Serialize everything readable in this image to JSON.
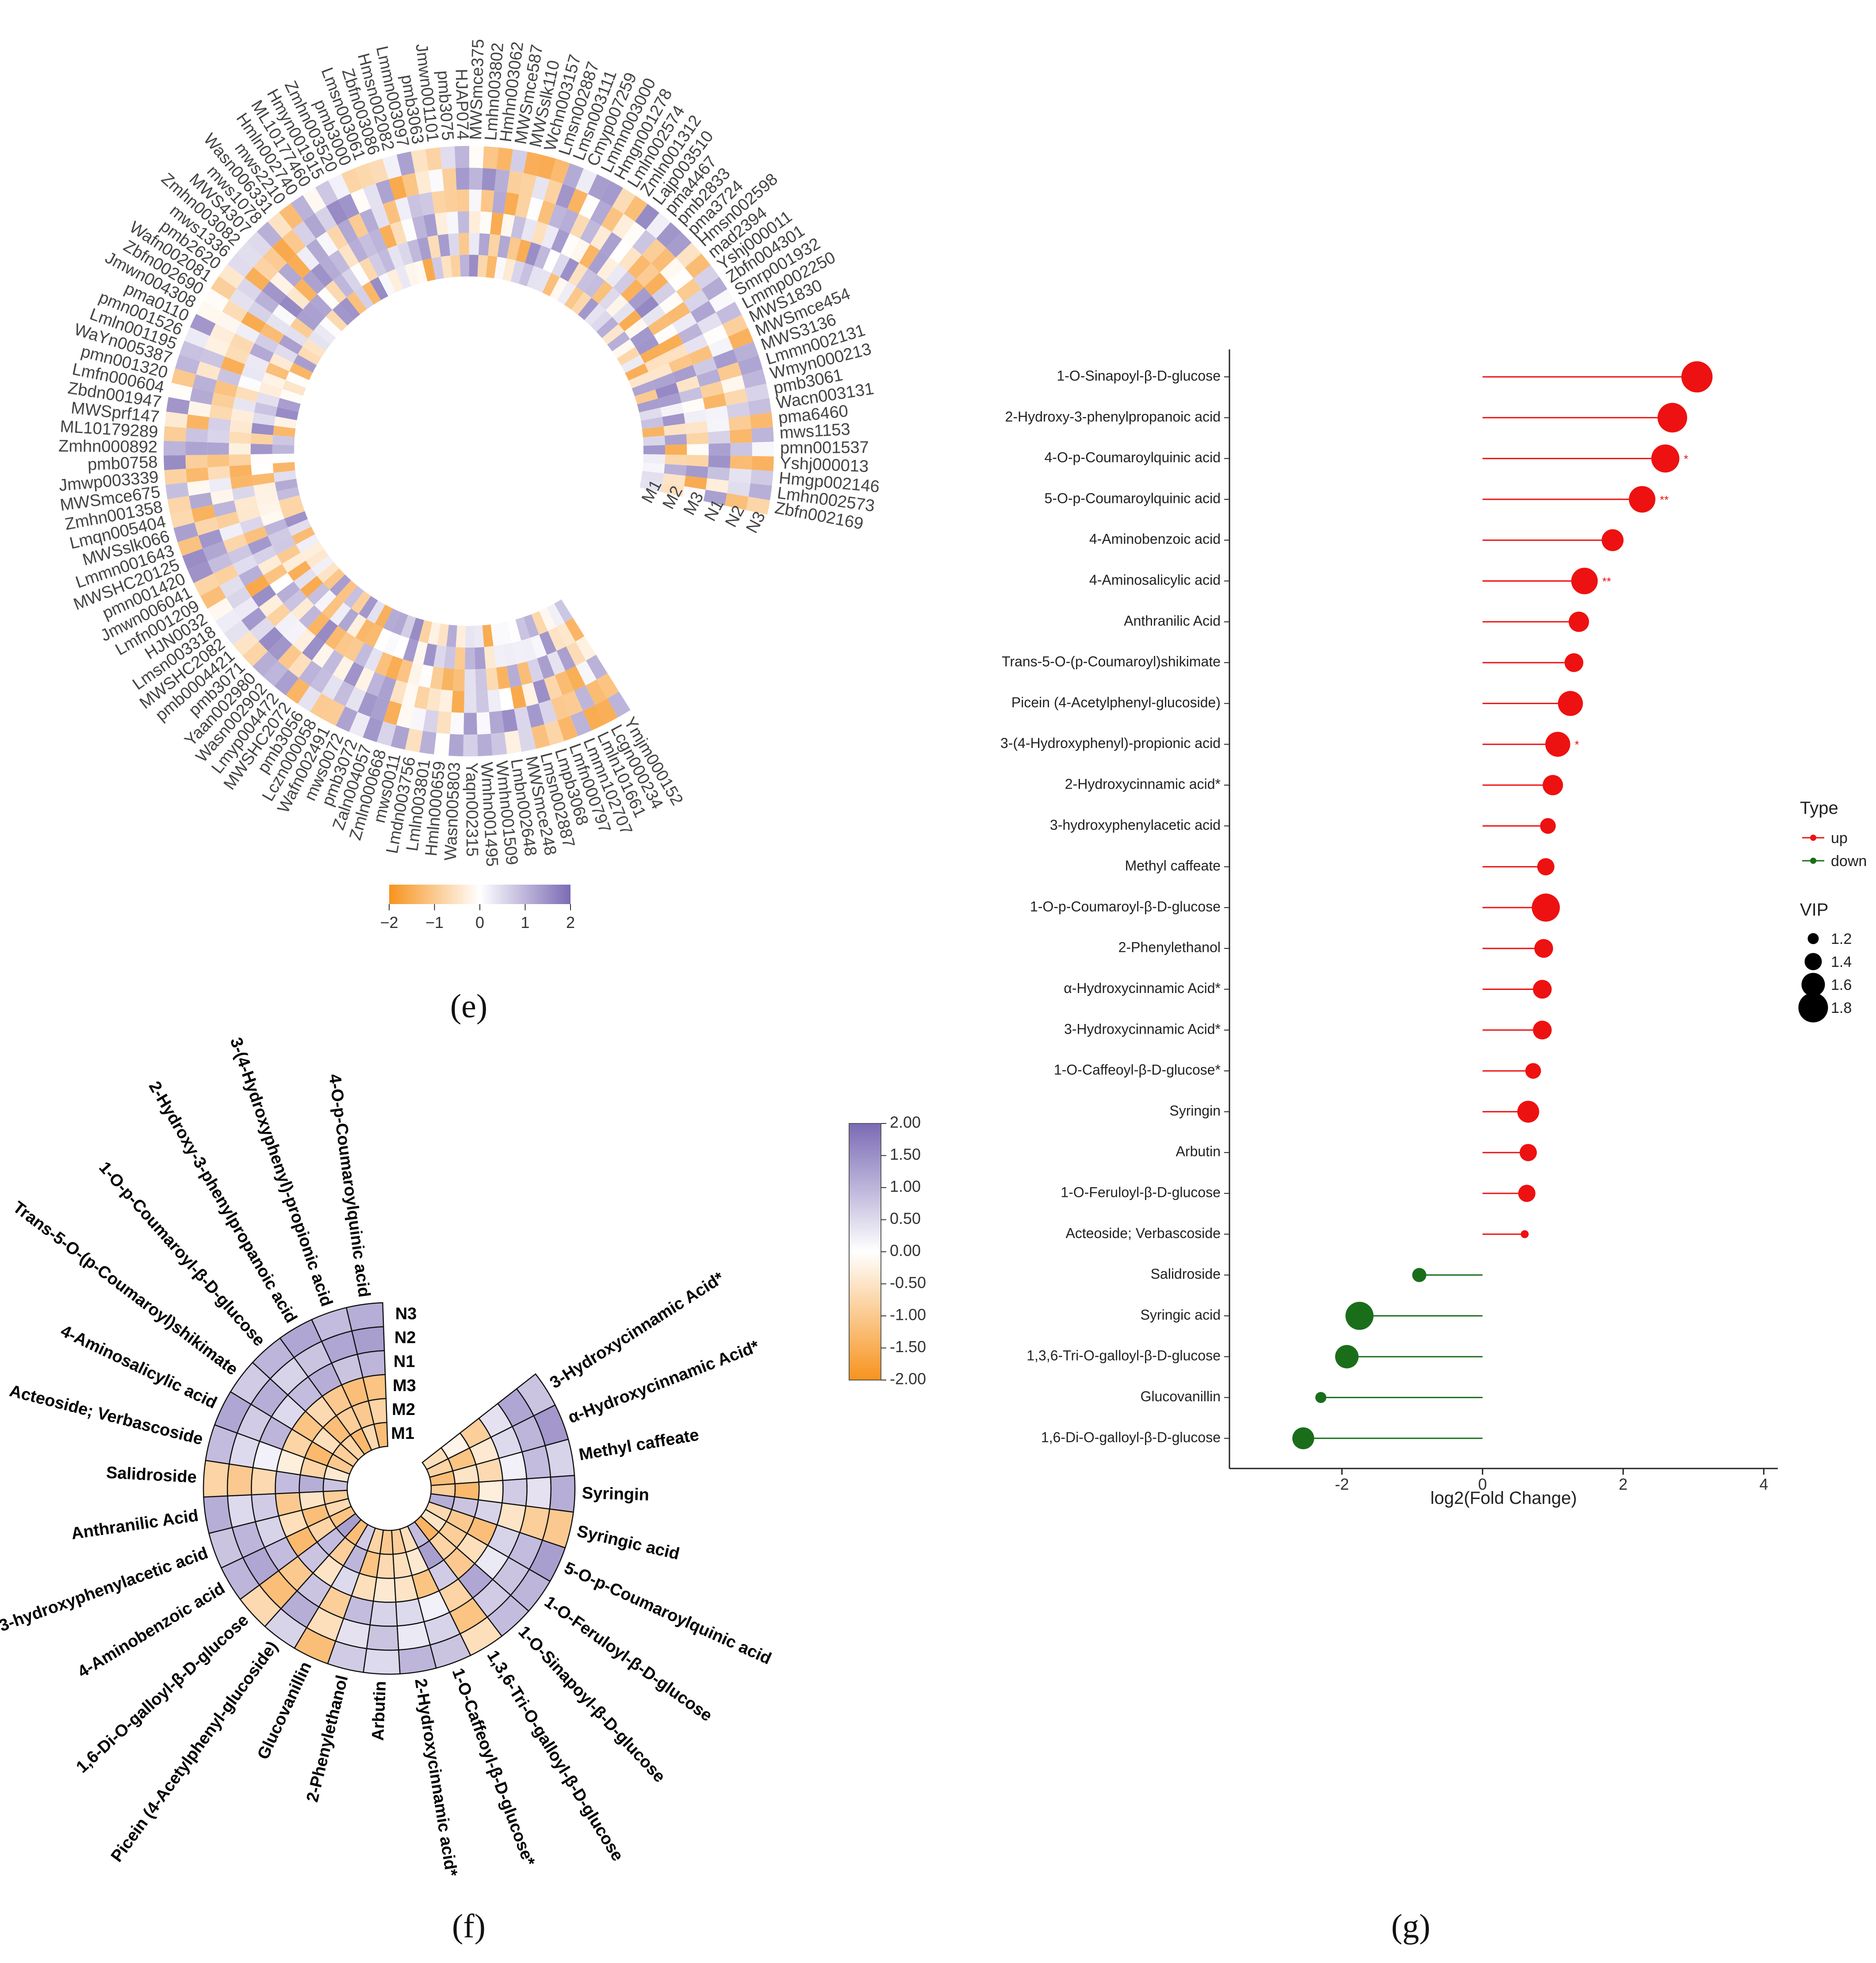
{
  "panel_labels": {
    "e": "(e)",
    "f": "(f)",
    "g": "(g)"
  },
  "colors": {
    "low": "#f7931e",
    "mid": "#ffffff",
    "high": "#7b6bb5",
    "up": "#ee1111",
    "down": "#1a6e1a"
  },
  "chart_data": [
    {
      "id": "e",
      "type": "heatmap",
      "title": "",
      "samples": [
        "M1",
        "M2",
        "M3",
        "N1",
        "N2",
        "N3"
      ],
      "colorbar_ticks": [
        "−2",
        "−1",
        "0",
        "1",
        "2"
      ],
      "colorbar_range": [
        -2,
        2
      ],
      "features": [
        "Ymjm000152",
        "Lcgn000234",
        "Lmln101661",
        "Lmmn102707",
        "Lmfn000797",
        "Lmpb3068",
        "Lmsn002887",
        "MWSmce248",
        "Lmbn002648",
        "Wmhn001509",
        "Wmhn001495",
        "Yaqn002315",
        "Wasn005803",
        "Hmln000659",
        "Lmln003801",
        "Lmdn003756",
        "mws0011",
        "Zmln000668",
        "Zaln004057",
        "pmb3072",
        "mws0072",
        "Wafn002491",
        "Lczn000058",
        "pmb3056",
        "MWSHC2072",
        "Lmyp004472",
        "Wasn002902",
        "Yaan002980",
        "pmb3071",
        "pmb0004421",
        "MWSHC2082",
        "Lmsn003318",
        "HJN0032",
        "Lmfn001209",
        "Jmwn006041",
        "pmn001420",
        "MWSHC20125",
        "Lmmn001643",
        "MWSslk066",
        "Lmqn005404",
        "Zmhn001358",
        "MWSmce675",
        "Jmwp003339",
        "pmb0758",
        "Zmhn000892",
        "ML10179289",
        "MWSprf147",
        "Zbdn001947",
        "Lmfn000604",
        "pmn001320",
        "WaYn005387",
        "Lmln001195",
        "pmn001526",
        "pma0110",
        "Jmwn004308",
        "Zbfn002690",
        "Wafn002081",
        "pmb2620",
        "mws1336",
        "Zmhn003082",
        "MWS4307",
        "mws1078",
        "Wasn006331",
        "mws2210",
        "Hmln002740",
        "ML10177460",
        "Hmyn001915",
        "Zmhn003520",
        "pmb3000",
        "Lmsn003061",
        "Zbfn003086",
        "Hmsn002082",
        "Lmmn003097",
        "pmb3063",
        "Jmwn001101",
        "pmb3075",
        "HJAP074",
        "MWSmce375",
        "Lmhn003802",
        "Hmhn003062",
        "MWSmce587",
        "MWSslk110",
        "Wchn003157",
        "Lmsn002887",
        "Lmsn003111",
        "Cmyp007259",
        "Lmmn003000",
        "Hmgn001278",
        "Lmln002574",
        "Zmln001312",
        "Lajp003510",
        "pma4467",
        "pmb2833",
        "pma3724",
        "Hmsn002598",
        "mad2394",
        "Yshj000011",
        "Zbfn004301",
        "Smrp001932",
        "Lmmp002250",
        "MWS1830",
        "MWSmce454",
        "MWS3136",
        "Lmmn002131",
        "Wmyn000213",
        "pmb3061",
        "Wacn003131",
        "pma6460",
        "mws1153",
        "pmn001537",
        "Yshj000013",
        "Hmgp002146",
        "Lmhn002573",
        "Zbfn002169"
      ]
    },
    {
      "id": "f",
      "type": "heatmap",
      "title": "",
      "samples": [
        "M1",
        "M2",
        "M3",
        "N1",
        "N2",
        "N3"
      ],
      "colorbar_ticks": [
        "2.00",
        "1.50",
        "1.00",
        "0.50",
        "0.00",
        "-0.50",
        "-1.00",
        "-1.50",
        "-2.00"
      ],
      "colorbar_range": [
        -2,
        2
      ],
      "features": [
        "3-Hydroxycinnamic Acid*",
        "α-Hydroxycinnamic Acid*",
        "Methyl caffeate",
        "Syringin",
        "Syringic acid",
        "5-O-p-Coumaroylquinic acid",
        "1-O-Feruloyl-β-D-glucose",
        "1-O-Sinapoyl-β-D-glucose",
        "1,3,6-Tri-O-galloyl-β-D-glucose",
        "1-O-Caffeoyl-β-D-glucose*",
        "2-Hydroxycinnamic acid*",
        "Arbutin",
        "2-Phenylethanol",
        "Glucovanillin",
        "Picein (4-Acetylphenyl-glucoside)",
        "1,6-Di-O-galloyl-β-D-glucose",
        "4-Aminobenzoic acid",
        "3-hydroxyphenylacetic acid",
        "Anthranilic Acid",
        "Salidroside",
        "Acteoside; Verbascoside",
        "4-Aminosalicylic acid",
        "Trans-5-O-(p-Coumaroyl)shikimate",
        "1-O-p-Coumaroyl-β-D-glucose",
        "2-Hydroxy-3-phenylpropanoic acid",
        "3-(4-Hydroxyphenyl)-propionic acid",
        "4-O-p-Coumaroylquinic acid"
      ],
      "values": [
        [
          -0.6,
          -0.2,
          -0.9,
          0.4,
          1.2,
          0.8
        ],
        [
          -0.8,
          -1.1,
          -0.4,
          0.5,
          1.0,
          1.4
        ],
        [
          -1.2,
          -0.5,
          -0.7,
          0.2,
          0.9,
          0.6
        ],
        [
          -0.9,
          -1.3,
          -0.3,
          0.7,
          0.4,
          1.1
        ],
        [
          1.1,
          0.8,
          0.6,
          -0.5,
          -0.9,
          -1.0
        ],
        [
          -0.7,
          -1.0,
          -1.2,
          0.6,
          0.9,
          1.3
        ],
        [
          -0.5,
          -0.9,
          -0.6,
          0.3,
          0.8,
          1.0
        ],
        [
          -1.4,
          -0.8,
          -1.0,
          1.2,
          0.7,
          0.9
        ],
        [
          0.9,
          1.3,
          0.7,
          -0.8,
          -1.1,
          -0.6
        ],
        [
          -0.6,
          -0.4,
          -1.1,
          0.2,
          0.6,
          0.8
        ],
        [
          -0.9,
          -0.6,
          -0.5,
          0.5,
          0.3,
          1.0
        ],
        [
          -1.0,
          -0.7,
          -0.4,
          0.6,
          0.8,
          0.5
        ],
        [
          -0.8,
          -1.1,
          -0.6,
          0.9,
          0.4,
          0.7
        ],
        [
          0.7,
          1.0,
          0.5,
          -0.9,
          -0.6,
          -1.2
        ],
        [
          -1.2,
          -0.9,
          -0.5,
          0.8,
          1.1,
          0.6
        ],
        [
          1.3,
          0.9,
          0.8,
          -1.0,
          -1.2,
          -0.7
        ],
        [
          -1.1,
          -0.8,
          -1.3,
          0.9,
          1.2,
          1.0
        ],
        [
          -0.7,
          -1.2,
          -0.6,
          0.6,
          1.0,
          0.8
        ],
        [
          -0.9,
          -0.5,
          -1.0,
          0.7,
          0.5,
          1.1
        ],
        [
          0.8,
          1.1,
          0.9,
          -0.7,
          -1.0,
          -0.8
        ],
        [
          -0.4,
          -0.8,
          -0.3,
          0.2,
          0.5,
          0.9
        ],
        [
          -1.0,
          -1.3,
          -0.8,
          1.0,
          0.7,
          1.2
        ],
        [
          -0.9,
          -0.6,
          -1.1,
          0.5,
          1.1,
          0.7
        ],
        [
          -0.8,
          -1.2,
          -0.7,
          0.9,
          0.6,
          1.0
        ],
        [
          -1.3,
          -0.9,
          -1.0,
          1.1,
          0.8,
          1.2
        ],
        [
          -0.7,
          -1.0,
          -1.2,
          0.8,
          1.2,
          0.9
        ],
        [
          -1.2,
          -0.8,
          -1.1,
          1.0,
          1.3,
          1.1
        ]
      ]
    },
    {
      "id": "g",
      "type": "lollipop",
      "xlabel": "log2(Fold Change)",
      "ylabel": "",
      "xlim": [
        -3.6,
        4.2
      ],
      "xticks": [
        -2,
        0,
        2,
        4
      ],
      "legend": {
        "type_title": "Type",
        "up_label": "up",
        "down_label": "down",
        "vip_title": "VIP",
        "vip_values": [
          1.2,
          1.4,
          1.6,
          1.8
        ]
      },
      "items": [
        {
          "name": "1-O-Sinapoyl-β-D-glucose",
          "value": 3.05,
          "vip": 1.85,
          "type": "up",
          "sig": ""
        },
        {
          "name": "2-Hydroxy-3-phenylpropanoic acid",
          "value": 2.7,
          "vip": 1.8,
          "type": "up",
          "sig": ""
        },
        {
          "name": "4-O-p-Coumaroylquinic acid",
          "value": 2.6,
          "vip": 1.75,
          "type": "up",
          "sig": "*"
        },
        {
          "name": "5-O-p-Coumaroylquinic acid",
          "value": 2.27,
          "vip": 1.7,
          "type": "up",
          "sig": "**"
        },
        {
          "name": "4-Aminobenzoic acid",
          "value": 1.85,
          "vip": 1.55,
          "type": "up",
          "sig": ""
        },
        {
          "name": "4-Aminosalicylic acid",
          "value": 1.45,
          "vip": 1.7,
          "type": "up",
          "sig": "**"
        },
        {
          "name": "Anthranilic Acid",
          "value": 1.37,
          "vip": 1.5,
          "type": "up",
          "sig": ""
        },
        {
          "name": "Trans-5-O-(p-Coumaroyl)shikimate",
          "value": 1.3,
          "vip": 1.45,
          "type": "up",
          "sig": ""
        },
        {
          "name": "Picein (4-Acetylphenyl-glucoside)",
          "value": 1.25,
          "vip": 1.65,
          "type": "up",
          "sig": ""
        },
        {
          "name": "3-(4-Hydroxyphenyl)-propionic acid",
          "value": 1.07,
          "vip": 1.65,
          "type": "up",
          "sig": "*"
        },
        {
          "name": "2-Hydroxycinnamic acid*",
          "value": 1.0,
          "vip": 1.5,
          "type": "up",
          "sig": ""
        },
        {
          "name": "3-hydroxyphenylacetic acid",
          "value": 0.93,
          "vip": 1.35,
          "type": "up",
          "sig": ""
        },
        {
          "name": "Methyl caffeate",
          "value": 0.9,
          "vip": 1.4,
          "type": "up",
          "sig": ""
        },
        {
          "name": "1-O-p-Coumaroyl-β-D-glucose",
          "value": 0.9,
          "vip": 1.75,
          "type": "up",
          "sig": ""
        },
        {
          "name": "2-Phenylethanol",
          "value": 0.87,
          "vip": 1.45,
          "type": "up",
          "sig": ""
        },
        {
          "name": "α-Hydroxycinnamic Acid*",
          "value": 0.85,
          "vip": 1.45,
          "type": "up",
          "sig": ""
        },
        {
          "name": "3-Hydroxycinnamic Acid*",
          "value": 0.85,
          "vip": 1.45,
          "type": "up",
          "sig": ""
        },
        {
          "name": "1-O-Caffeoyl-β-D-glucose*",
          "value": 0.72,
          "vip": 1.35,
          "type": "up",
          "sig": ""
        },
        {
          "name": "Syringin",
          "value": 0.65,
          "vip": 1.55,
          "type": "up",
          "sig": ""
        },
        {
          "name": "Arbutin",
          "value": 0.65,
          "vip": 1.4,
          "type": "up",
          "sig": ""
        },
        {
          "name": "1-O-Feruloyl-β-D-glucose",
          "value": 0.63,
          "vip": 1.4,
          "type": "up",
          "sig": ""
        },
        {
          "name": "Acteoside; Verbascoside",
          "value": 0.6,
          "vip": 1.1,
          "type": "up",
          "sig": ""
        },
        {
          "name": "Salidroside",
          "value": -0.9,
          "vip": 1.3,
          "type": "down",
          "sig": ""
        },
        {
          "name": "Syringic acid",
          "value": -1.75,
          "vip": 1.75,
          "type": "down",
          "sig": ""
        },
        {
          "name": "1,3,6-Tri-O-galloyl-β-D-glucose",
          "value": -1.93,
          "vip": 1.6,
          "type": "down",
          "sig": ""
        },
        {
          "name": "Glucovanillin",
          "value": -2.3,
          "vip": 1.2,
          "type": "down",
          "sig": ""
        },
        {
          "name": "1,6-Di-O-galloyl-β-D-glucose",
          "value": -2.55,
          "vip": 1.55,
          "type": "down",
          "sig": ""
        }
      ]
    }
  ]
}
